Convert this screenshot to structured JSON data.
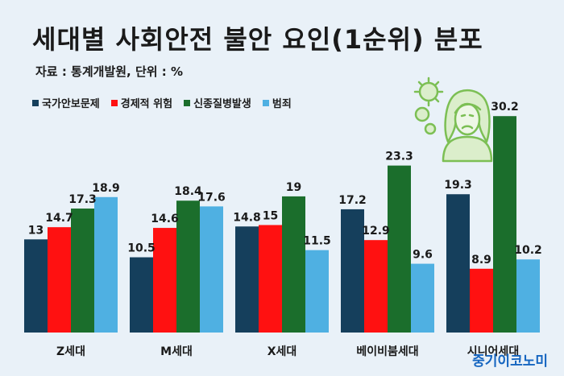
{
  "title": "세대별 사회안전 불안 요인(1순위) 분포",
  "subtitle": "자료 : 통계개발원, 단위 : %",
  "credit": "중기이코노미",
  "icon": "worried-person-virus-icon",
  "colors": {
    "national_security": "#153f5c",
    "economic_risk": "#ff1111",
    "new_disease": "#1b6e2c",
    "crime": "#4fb0e2",
    "background": "#e9f1f8",
    "icon_line": "#7cbf54",
    "icon_fill": "#dbeecb"
  },
  "chart_data": {
    "type": "bar",
    "categories": [
      "Z세대",
      "M세대",
      "X세대",
      "베이비붐세대",
      "시니어세대"
    ],
    "series": [
      {
        "name": "국가안보문제",
        "values": [
          13,
          10.5,
          14.8,
          17.2,
          19.3
        ],
        "labels": [
          "13",
          "10.5",
          "14.8",
          "17.2",
          "19.3"
        ]
      },
      {
        "name": "경제적 위험",
        "values": [
          14.7,
          14.6,
          15,
          12.9,
          8.9
        ],
        "labels": [
          "14.7",
          "14.6",
          "15",
          "12.9",
          "8.9"
        ]
      },
      {
        "name": "신종질병발생",
        "values": [
          17.3,
          18.4,
          19,
          23.3,
          30.2
        ],
        "labels": [
          "17.3",
          "18.4",
          "19",
          "23.3",
          "30.2"
        ]
      },
      {
        "name": "범죄",
        "values": [
          18.9,
          17.6,
          11.5,
          9.6,
          10.2
        ],
        "labels": [
          "18.9",
          "17.6",
          "11.5",
          "9.6",
          "10.2"
        ]
      }
    ],
    "legend": "top-left",
    "grid": false,
    "ylim": [
      0,
      35
    ]
  }
}
